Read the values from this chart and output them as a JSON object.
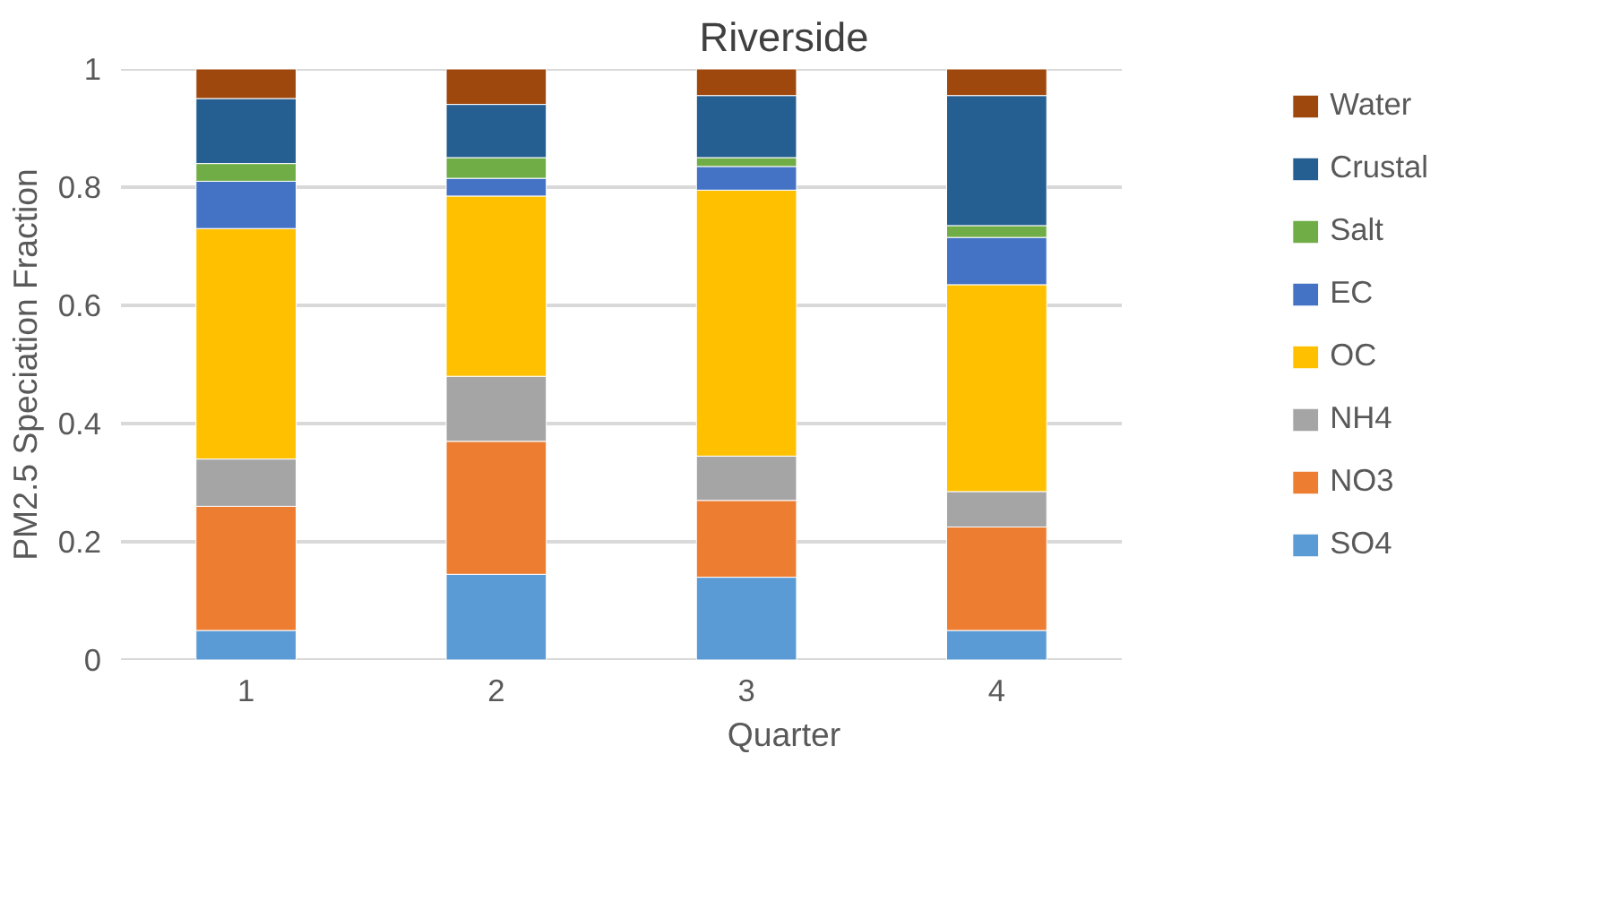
{
  "chart_data": {
    "type": "bar",
    "stacked": true,
    "title": "Riverside",
    "xlabel": "Quarter",
    "ylabel": "PM2.5 Speciation Fraction",
    "categories": [
      "1",
      "2",
      "3",
      "4"
    ],
    "series": [
      {
        "name": "SO4",
        "color": "#5b9bd5",
        "values": [
          0.05,
          0.145,
          0.14,
          0.05
        ]
      },
      {
        "name": "NO3",
        "color": "#ed7d31",
        "values": [
          0.21,
          0.225,
          0.13,
          0.175
        ]
      },
      {
        "name": "NH4",
        "color": "#a5a5a5",
        "values": [
          0.08,
          0.11,
          0.075,
          0.06
        ]
      },
      {
        "name": "OC",
        "color": "#ffc000",
        "values": [
          0.39,
          0.305,
          0.45,
          0.35
        ]
      },
      {
        "name": "EC",
        "color": "#4472c4",
        "values": [
          0.08,
          0.03,
          0.04,
          0.08
        ]
      },
      {
        "name": "Salt",
        "color": "#70ad47",
        "values": [
          0.03,
          0.035,
          0.015,
          0.02
        ]
      },
      {
        "name": "Crustal",
        "color": "#255e91",
        "values": [
          0.11,
          0.09,
          0.105,
          0.22
        ]
      },
      {
        "name": "Water",
        "color": "#9e480e",
        "values": [
          0.05,
          0.06,
          0.045,
          0.045
        ]
      }
    ],
    "ylim": [
      0,
      1
    ],
    "yticks": [
      0,
      0.2,
      0.4,
      0.6,
      0.8,
      1
    ],
    "grid": "y",
    "legend": "right"
  }
}
